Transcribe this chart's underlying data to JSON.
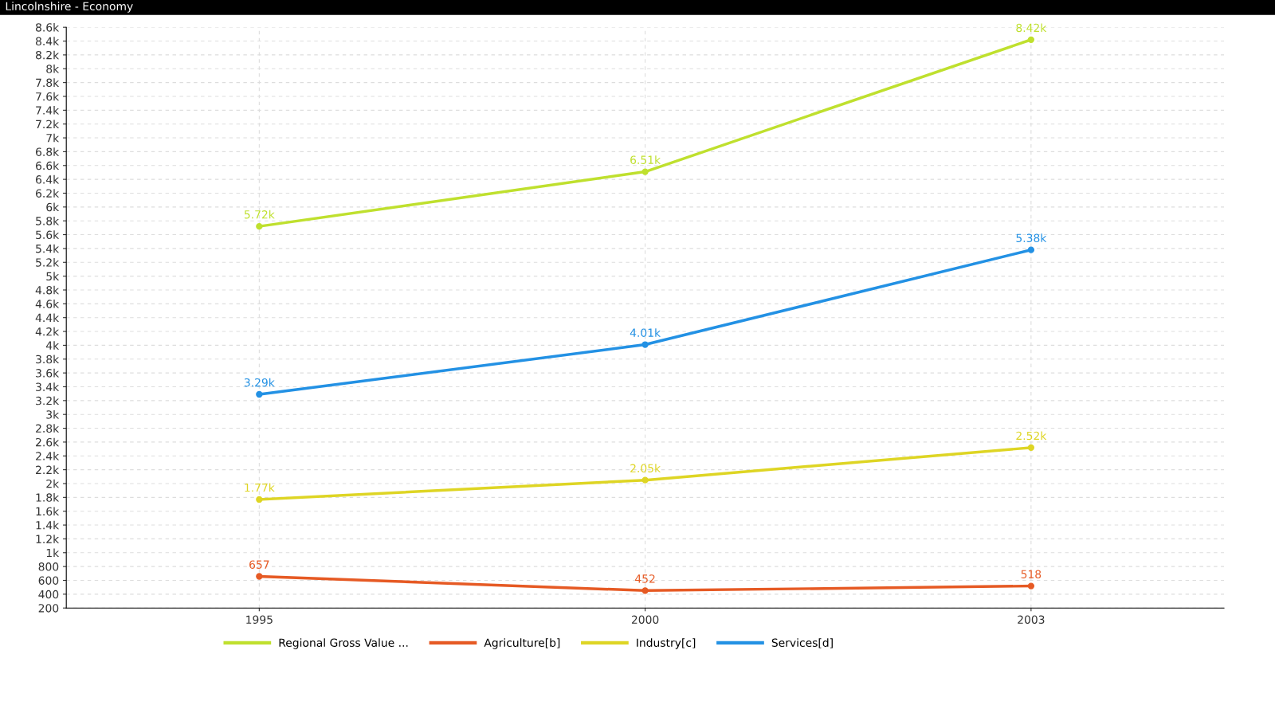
{
  "chart_data": {
    "type": "line",
    "title": "Lincolnshire - Economy",
    "categories": [
      "1995",
      "2000",
      "2003"
    ],
    "series": [
      {
        "name": "Regional Gross Value ...",
        "color": "#bfe02e",
        "values": [
          5720,
          6510,
          8420
        ],
        "value_labels": [
          "5.72k",
          "6.51k",
          "8.42k"
        ]
      },
      {
        "name": "Agriculture[b]",
        "color": "#e65a24",
        "values": [
          657,
          452,
          518
        ],
        "value_labels": [
          "657",
          "452",
          "518"
        ]
      },
      {
        "name": "Industry[c]",
        "color": "#ded524",
        "values": [
          1770,
          2050,
          2520
        ],
        "value_labels": [
          "1.77k",
          "2.05k",
          "2.52k"
        ]
      },
      {
        "name": "Services[d]",
        "color": "#2391e4",
        "values": [
          3290,
          4010,
          5380
        ],
        "value_labels": [
          "3.29k",
          "4.01k",
          "5.38k"
        ]
      }
    ],
    "ylim": [
      200,
      8600
    ],
    "yticks": [
      200,
      400,
      600,
      800,
      {
        "value": 1000,
        "label": "1k"
      },
      {
        "value": 1200,
        "label": "1.2k"
      },
      {
        "value": 1400,
        "label": "1.4k"
      },
      {
        "value": 1600,
        "label": "1.6k"
      },
      {
        "value": 1800,
        "label": "1.8k"
      },
      {
        "value": 2000,
        "label": "2k"
      },
      {
        "value": 2200,
        "label": "2.2k"
      },
      {
        "value": 2400,
        "label": "2.4k"
      },
      {
        "value": 2600,
        "label": "2.6k"
      },
      {
        "value": 2800,
        "label": "2.8k"
      },
      {
        "value": 3000,
        "label": "3k"
      },
      {
        "value": 3200,
        "label": "3.2k"
      },
      {
        "value": 3400,
        "label": "3.4k"
      },
      {
        "value": 3600,
        "label": "3.6k"
      },
      {
        "value": 3800,
        "label": "3.8k"
      },
      {
        "value": 4000,
        "label": "4k"
      },
      {
        "value": 4200,
        "label": "4.2k"
      },
      {
        "value": 4400,
        "label": "4.4k"
      },
      {
        "value": 4600,
        "label": "4.6k"
      },
      {
        "value": 4800,
        "label": "4.8k"
      },
      {
        "value": 5000,
        "label": "5k"
      },
      {
        "value": 5200,
        "label": "5.2k"
      },
      {
        "value": 5400,
        "label": "5.4k"
      },
      {
        "value": 5600,
        "label": "5.6k"
      },
      {
        "value": 5800,
        "label": "5.8k"
      },
      {
        "value": 6000,
        "label": "6k"
      },
      {
        "value": 6200,
        "label": "6.2k"
      },
      {
        "value": 6400,
        "label": "6.4k"
      },
      {
        "value": 6600,
        "label": "6.6k"
      },
      {
        "value": 6800,
        "label": "6.8k"
      },
      {
        "value": 7000,
        "label": "7k"
      },
      {
        "value": 7200,
        "label": "7.2k"
      },
      {
        "value": 7400,
        "label": "7.4k"
      },
      {
        "value": 7600,
        "label": "7.6k"
      },
      {
        "value": 7800,
        "label": "7.8k"
      },
      {
        "value": 8000,
        "label": "8k"
      },
      {
        "value": 8200,
        "label": "8.2k"
      },
      {
        "value": 8400,
        "label": "8.4k"
      },
      {
        "value": 8600,
        "label": "8.6k"
      }
    ],
    "grid": true,
    "legend": "bottom",
    "marker": "circle",
    "line_style": "solid"
  }
}
